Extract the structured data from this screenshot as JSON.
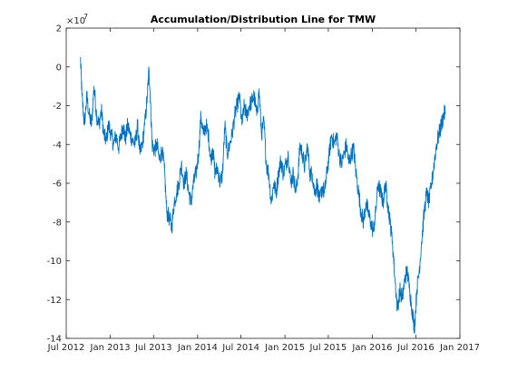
{
  "chart_data": {
    "type": "line",
    "title": "Accumulation/Distribution Line for TMW",
    "xlabel": "",
    "ylabel": "",
    "y_multiplier_label": "×10",
    "y_multiplier_exponent": "7",
    "xlim": [
      "2012-07-01",
      "2017-01-01"
    ],
    "ylim": [
      -14,
      2
    ],
    "y_ticks": [
      -14,
      -12,
      -10,
      -8,
      -6,
      -4,
      -2,
      0,
      2
    ],
    "x_ticks": [
      {
        "date": "2012-07-01",
        "label": "Jul 2012"
      },
      {
        "date": "2013-01-01",
        "label": "Jan 2013"
      },
      {
        "date": "2013-07-01",
        "label": "Jul 2013"
      },
      {
        "date": "2014-01-01",
        "label": "Jan 2014"
      },
      {
        "date": "2014-07-01",
        "label": "Jul 2014"
      },
      {
        "date": "2015-01-01",
        "label": "Jan 2015"
      },
      {
        "date": "2015-07-01",
        "label": "Jul 2015"
      },
      {
        "date": "2016-01-01",
        "label": "Jan 2016"
      },
      {
        "date": "2016-07-01",
        "label": "Jul 2016"
      },
      {
        "date": "2017-01-01",
        "label": "Jan 2017"
      }
    ],
    "grid": false,
    "line_color": "#0072BD",
    "series": [
      {
        "x": [
          "2012-08-29",
          "2012-09-05",
          "2012-09-15",
          "2012-09-25",
          "2012-10-05",
          "2012-10-15",
          "2012-10-25",
          "2012-11-05",
          "2012-11-15",
          "2012-11-25",
          "2012-12-05",
          "2012-12-15",
          "2012-12-25",
          "2013-01-05",
          "2013-01-15",
          "2013-01-25",
          "2013-02-05",
          "2013-02-15",
          "2013-02-25",
          "2013-03-05",
          "2013-03-15",
          "2013-03-25",
          "2013-04-05",
          "2013-04-15",
          "2013-04-25",
          "2013-05-05",
          "2013-05-15",
          "2013-05-25",
          "2013-06-05",
          "2013-06-12",
          "2013-06-18",
          "2013-06-25",
          "2013-07-05",
          "2013-07-15",
          "2013-07-25",
          "2013-08-05",
          "2013-08-15",
          "2013-08-25",
          "2013-09-05",
          "2013-09-15",
          "2013-09-25",
          "2013-10-05",
          "2013-10-15",
          "2013-10-25",
          "2013-11-05",
          "2013-11-15",
          "2013-11-25",
          "2013-12-05",
          "2013-12-15",
          "2013-12-25",
          "2014-01-05",
          "2014-01-15",
          "2014-01-25",
          "2014-02-05",
          "2014-02-15",
          "2014-02-25",
          "2014-03-05",
          "2014-03-15",
          "2014-03-25",
          "2014-04-05",
          "2014-04-15",
          "2014-04-25",
          "2014-05-05",
          "2014-05-15",
          "2014-05-25",
          "2014-06-05",
          "2014-06-15",
          "2014-06-25",
          "2014-07-05",
          "2014-07-15",
          "2014-07-25",
          "2014-08-05",
          "2014-08-15",
          "2014-08-25",
          "2014-09-05",
          "2014-09-15",
          "2014-09-25",
          "2014-10-05",
          "2014-10-15",
          "2014-10-25",
          "2014-11-05",
          "2014-11-15",
          "2014-11-25",
          "2014-12-05",
          "2014-12-15",
          "2014-12-25",
          "2015-01-05",
          "2015-01-15",
          "2015-01-25",
          "2015-02-05",
          "2015-02-15",
          "2015-02-25",
          "2015-03-05",
          "2015-03-15",
          "2015-03-25",
          "2015-04-05",
          "2015-04-15",
          "2015-04-25",
          "2015-05-05",
          "2015-05-15",
          "2015-05-25",
          "2015-06-05",
          "2015-06-15",
          "2015-06-25",
          "2015-07-05",
          "2015-07-15",
          "2015-07-25",
          "2015-08-05",
          "2015-08-15",
          "2015-08-25",
          "2015-09-05",
          "2015-09-15",
          "2015-09-25",
          "2015-10-05",
          "2015-10-15",
          "2015-10-25",
          "2015-11-05",
          "2015-11-15",
          "2015-11-25",
          "2015-12-05",
          "2015-12-15",
          "2015-12-25",
          "2016-01-05",
          "2016-01-15",
          "2016-01-25",
          "2016-02-05",
          "2016-02-15",
          "2016-02-25",
          "2016-03-05",
          "2016-03-15",
          "2016-03-25",
          "2016-04-05",
          "2016-04-15",
          "2016-04-25",
          "2016-05-05",
          "2016-05-15",
          "2016-05-25",
          "2016-06-05",
          "2016-06-15",
          "2016-06-25",
          "2016-07-05",
          "2016-07-15",
          "2016-07-25",
          "2016-08-05",
          "2016-08-15",
          "2016-08-25",
          "2016-09-05",
          "2016-09-15",
          "2016-09-25",
          "2016-10-05",
          "2016-10-15",
          "2016-10-25",
          "2016-11-01"
        ],
        "values": [
          0.5,
          -1.5,
          -3.0,
          -1.5,
          -2.5,
          -3.0,
          -1.0,
          -2.5,
          -3.0,
          -2.2,
          -3.5,
          -3.8,
          -3.0,
          -3.5,
          -4.0,
          -3.5,
          -4.2,
          -3.5,
          -3.0,
          -3.8,
          -3.0,
          -3.5,
          -3.8,
          -4.0,
          -3.0,
          -4.5,
          -4.0,
          -3.0,
          -1.5,
          -0.1,
          -1.8,
          -4.0,
          -4.3,
          -4.0,
          -4.8,
          -4.3,
          -5.2,
          -7.5,
          -7.8,
          -8.3,
          -7.0,
          -6.5,
          -6.0,
          -5.0,
          -6.0,
          -5.5,
          -6.5,
          -7.0,
          -6.0,
          -5.5,
          -4.5,
          -2.5,
          -3.5,
          -3.0,
          -3.5,
          -4.8,
          -4.2,
          -5.5,
          -5.2,
          -6.0,
          -5.5,
          -3.0,
          -4.5,
          -4.0,
          -3.5,
          -2.5,
          -2.0,
          -1.5,
          -3.0,
          -2.0,
          -2.5,
          -2.0,
          -1.8,
          -1.5,
          -2.5,
          -1.2,
          -3.5,
          -2.8,
          -5.0,
          -5.5,
          -7.0,
          -6.0,
          -6.5,
          -5.5,
          -4.8,
          -5.5,
          -5.0,
          -4.5,
          -6.0,
          -5.5,
          -6.5,
          -5.5,
          -4.0,
          -4.5,
          -5.2,
          -4.0,
          -5.5,
          -5.5,
          -6.5,
          -6.0,
          -7.0,
          -6.2,
          -6.5,
          -5.5,
          -4.5,
          -3.5,
          -4.0,
          -3.5,
          -4.5,
          -5.0,
          -4.5,
          -4.0,
          -5.0,
          -4.5,
          -4.2,
          -5.5,
          -6.5,
          -7.5,
          -8.0,
          -7.0,
          -7.5,
          -8.0,
          -8.5,
          -7.5,
          -6.0,
          -6.5,
          -7.0,
          -6.0,
          -7.0,
          -8.0,
          -9.0,
          -11.0,
          -12.5,
          -11.5,
          -12.0,
          -11.0,
          -10.5,
          -11.5,
          -12.5,
          -13.5,
          -11.5,
          -10.5,
          -9.0,
          -7.5,
          -6.5,
          -7.0,
          -6.0,
          -5.0,
          -4.0,
          -3.5,
          -3.0,
          -2.5,
          -2.3
        ]
      }
    ]
  }
}
